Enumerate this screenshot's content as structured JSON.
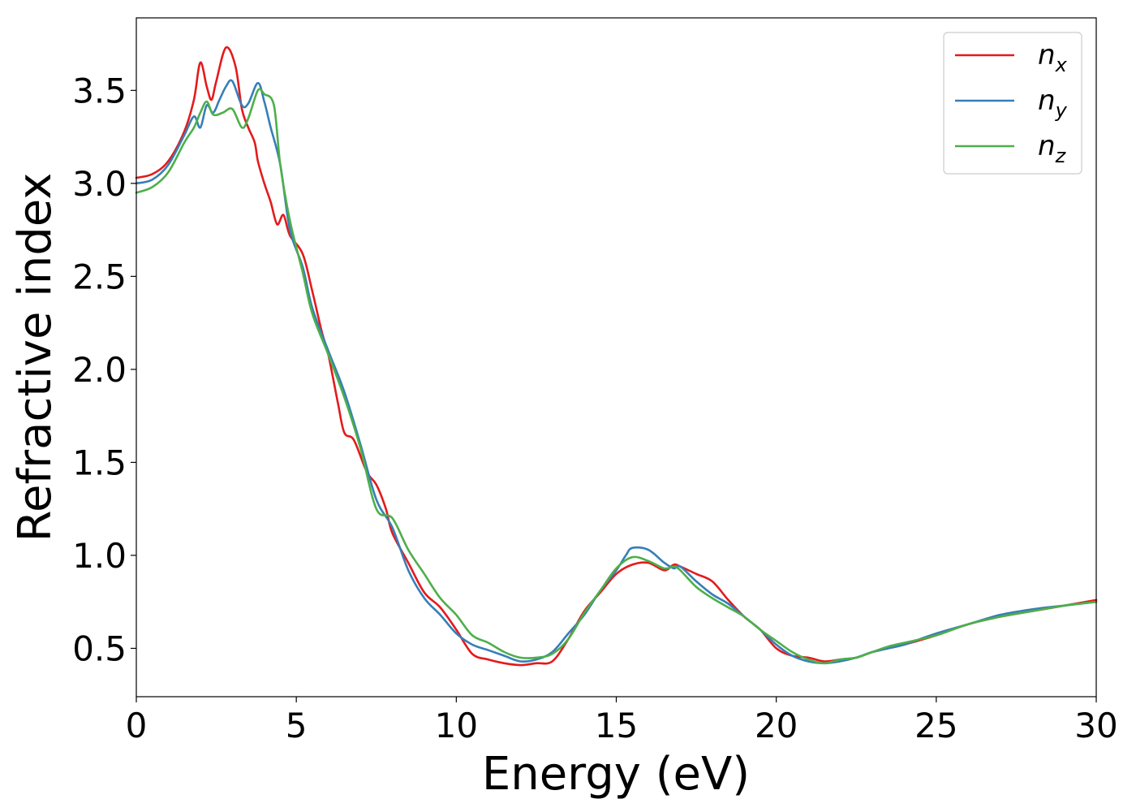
{
  "chart_data": {
    "type": "line",
    "title": "",
    "xlabel": "Energy (eV)",
    "ylabel": "Refractive index",
    "xlim": [
      0,
      30
    ],
    "ylim": [
      0.24,
      3.89
    ],
    "xticks": [
      0,
      5,
      10,
      15,
      20,
      25,
      30
    ],
    "yticks": [
      0.5,
      1.0,
      1.5,
      2.0,
      2.5,
      3.0,
      3.5
    ],
    "ytick_labels": [
      "0.5",
      "1.0",
      "1.5",
      "2.0",
      "2.5",
      "3.0",
      "3.5"
    ],
    "grid": false,
    "legend_position": "top-right",
    "series": [
      {
        "name": "n",
        "subscript": "x",
        "color": "#e41a1c",
        "points": [
          [
            0,
            3.03
          ],
          [
            0.5,
            3.05
          ],
          [
            1.0,
            3.12
          ],
          [
            1.5,
            3.28
          ],
          [
            1.8,
            3.45
          ],
          [
            2.0,
            3.65
          ],
          [
            2.2,
            3.52
          ],
          [
            2.35,
            3.45
          ],
          [
            2.5,
            3.55
          ],
          [
            2.8,
            3.73
          ],
          [
            3.1,
            3.63
          ],
          [
            3.3,
            3.4
          ],
          [
            3.5,
            3.3
          ],
          [
            3.7,
            3.22
          ],
          [
            3.8,
            3.12
          ],
          [
            4.0,
            3.0
          ],
          [
            4.2,
            2.9
          ],
          [
            4.4,
            2.78
          ],
          [
            4.6,
            2.83
          ],
          [
            4.8,
            2.72
          ],
          [
            5.2,
            2.62
          ],
          [
            5.5,
            2.42
          ],
          [
            5.8,
            2.2
          ],
          [
            6.0,
            2.08
          ],
          [
            6.3,
            1.82
          ],
          [
            6.5,
            1.66
          ],
          [
            6.8,
            1.62
          ],
          [
            7.2,
            1.45
          ],
          [
            7.5,
            1.38
          ],
          [
            7.8,
            1.25
          ],
          [
            8.0,
            1.12
          ],
          [
            8.5,
            0.96
          ],
          [
            9.0,
            0.8
          ],
          [
            9.5,
            0.72
          ],
          [
            10.0,
            0.6
          ],
          [
            10.5,
            0.47
          ],
          [
            11.0,
            0.44
          ],
          [
            11.5,
            0.42
          ],
          [
            12.0,
            0.41
          ],
          [
            12.5,
            0.42
          ],
          [
            13.0,
            0.43
          ],
          [
            13.5,
            0.55
          ],
          [
            14.0,
            0.7
          ],
          [
            14.5,
            0.8
          ],
          [
            15.0,
            0.9
          ],
          [
            15.5,
            0.95
          ],
          [
            16.0,
            0.96
          ],
          [
            16.5,
            0.92
          ],
          [
            16.8,
            0.95
          ],
          [
            17.0,
            0.94
          ],
          [
            17.5,
            0.9
          ],
          [
            18.0,
            0.86
          ],
          [
            18.5,
            0.76
          ],
          [
            19.0,
            0.67
          ],
          [
            19.5,
            0.6
          ],
          [
            20.0,
            0.5
          ],
          [
            20.5,
            0.46
          ],
          [
            21.0,
            0.45
          ],
          [
            21.5,
            0.43
          ],
          [
            22.0,
            0.44
          ],
          [
            22.5,
            0.45
          ],
          [
            23.0,
            0.48
          ],
          [
            23.5,
            0.5
          ],
          [
            24.0,
            0.52
          ],
          [
            25.0,
            0.57
          ],
          [
            26.0,
            0.63
          ],
          [
            27.0,
            0.67
          ],
          [
            28.0,
            0.7
          ],
          [
            29.0,
            0.73
          ],
          [
            30.0,
            0.76
          ]
        ]
      },
      {
        "name": "n",
        "subscript": "y",
        "color": "#377eb8",
        "points": [
          [
            0,
            3.0
          ],
          [
            0.5,
            3.02
          ],
          [
            1.0,
            3.1
          ],
          [
            1.5,
            3.26
          ],
          [
            1.8,
            3.36
          ],
          [
            2.0,
            3.3
          ],
          [
            2.2,
            3.42
          ],
          [
            2.4,
            3.38
          ],
          [
            2.6,
            3.45
          ],
          [
            2.8,
            3.52
          ],
          [
            3.0,
            3.55
          ],
          [
            3.3,
            3.42
          ],
          [
            3.5,
            3.43
          ],
          [
            3.8,
            3.54
          ],
          [
            4.0,
            3.44
          ],
          [
            4.2,
            3.3
          ],
          [
            4.5,
            3.1
          ],
          [
            4.8,
            2.75
          ],
          [
            5.2,
            2.55
          ],
          [
            5.5,
            2.33
          ],
          [
            6.0,
            2.1
          ],
          [
            6.5,
            1.88
          ],
          [
            7.0,
            1.6
          ],
          [
            7.5,
            1.3
          ],
          [
            8.0,
            1.15
          ],
          [
            8.5,
            0.92
          ],
          [
            9.0,
            0.77
          ],
          [
            9.5,
            0.68
          ],
          [
            10.0,
            0.58
          ],
          [
            10.5,
            0.52
          ],
          [
            11.0,
            0.49
          ],
          [
            11.5,
            0.46
          ],
          [
            12.0,
            0.43
          ],
          [
            12.5,
            0.44
          ],
          [
            13.0,
            0.48
          ],
          [
            13.5,
            0.58
          ],
          [
            14.0,
            0.68
          ],
          [
            14.5,
            0.81
          ],
          [
            15.0,
            0.92
          ],
          [
            15.3,
            1.0
          ],
          [
            15.5,
            1.04
          ],
          [
            16.0,
            1.03
          ],
          [
            16.5,
            0.96
          ],
          [
            16.8,
            0.93
          ],
          [
            17.0,
            0.94
          ],
          [
            17.5,
            0.86
          ],
          [
            18.0,
            0.79
          ],
          [
            18.5,
            0.74
          ],
          [
            19.0,
            0.67
          ],
          [
            19.5,
            0.6
          ],
          [
            20.0,
            0.52
          ],
          [
            20.5,
            0.46
          ],
          [
            21.0,
            0.43
          ],
          [
            21.5,
            0.42
          ],
          [
            22.0,
            0.43
          ],
          [
            22.5,
            0.45
          ],
          [
            23.0,
            0.48
          ],
          [
            23.5,
            0.5
          ],
          [
            24.0,
            0.52
          ],
          [
            25.0,
            0.58
          ],
          [
            26.0,
            0.63
          ],
          [
            27.0,
            0.68
          ],
          [
            28.0,
            0.71
          ],
          [
            29.0,
            0.73
          ],
          [
            30.0,
            0.75
          ]
        ]
      },
      {
        "name": "n",
        "subscript": "z",
        "color": "#4daf4a",
        "points": [
          [
            0,
            2.95
          ],
          [
            0.5,
            2.98
          ],
          [
            1.0,
            3.06
          ],
          [
            1.5,
            3.22
          ],
          [
            1.8,
            3.3
          ],
          [
            2.0,
            3.38
          ],
          [
            2.2,
            3.44
          ],
          [
            2.4,
            3.37
          ],
          [
            2.7,
            3.38
          ],
          [
            3.0,
            3.4
          ],
          [
            3.3,
            3.3
          ],
          [
            3.5,
            3.35
          ],
          [
            3.8,
            3.5
          ],
          [
            4.0,
            3.48
          ],
          [
            4.3,
            3.42
          ],
          [
            4.5,
            3.1
          ],
          [
            4.8,
            2.8
          ],
          [
            5.2,
            2.52
          ],
          [
            5.5,
            2.3
          ],
          [
            6.0,
            2.08
          ],
          [
            6.5,
            1.85
          ],
          [
            7.0,
            1.58
          ],
          [
            7.5,
            1.25
          ],
          [
            8.0,
            1.2
          ],
          [
            8.5,
            1.03
          ],
          [
            9.0,
            0.9
          ],
          [
            9.5,
            0.77
          ],
          [
            10.0,
            0.68
          ],
          [
            10.5,
            0.57
          ],
          [
            11.0,
            0.53
          ],
          [
            11.5,
            0.48
          ],
          [
            12.0,
            0.45
          ],
          [
            12.5,
            0.45
          ],
          [
            13.0,
            0.47
          ],
          [
            13.5,
            0.55
          ],
          [
            14.0,
            0.69
          ],
          [
            14.5,
            0.81
          ],
          [
            15.0,
            0.93
          ],
          [
            15.5,
            0.99
          ],
          [
            16.0,
            0.97
          ],
          [
            16.5,
            0.93
          ],
          [
            16.8,
            0.94
          ],
          [
            17.0,
            0.92
          ],
          [
            17.5,
            0.83
          ],
          [
            18.0,
            0.77
          ],
          [
            18.5,
            0.72
          ],
          [
            19.0,
            0.67
          ],
          [
            19.5,
            0.6
          ],
          [
            20.0,
            0.54
          ],
          [
            20.5,
            0.48
          ],
          [
            21.0,
            0.44
          ],
          [
            21.5,
            0.42
          ],
          [
            22.0,
            0.44
          ],
          [
            22.5,
            0.45
          ],
          [
            23.0,
            0.48
          ],
          [
            23.5,
            0.51
          ],
          [
            24.0,
            0.53
          ],
          [
            25.0,
            0.57
          ],
          [
            26.0,
            0.63
          ],
          [
            27.0,
            0.67
          ],
          [
            28.0,
            0.7
          ],
          [
            29.0,
            0.73
          ],
          [
            30.0,
            0.75
          ]
        ]
      }
    ]
  }
}
